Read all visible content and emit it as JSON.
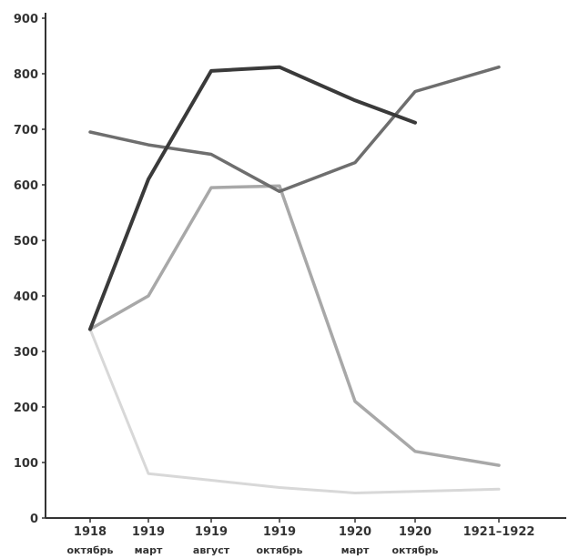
{
  "chart_data": {
    "type": "line",
    "title": "",
    "xlabel": "",
    "ylabel": "",
    "ylim": [
      0,
      900
    ],
    "yticks": [
      0,
      100,
      200,
      300,
      400,
      500,
      600,
      700,
      800,
      900
    ],
    "categories": [
      {
        "year": "1918",
        "sub": "октябрь"
      },
      {
        "year": "1919",
        "sub": "март"
      },
      {
        "year": "1919",
        "sub": "август"
      },
      {
        "year": "1919",
        "sub": "октябрь"
      },
      {
        "year": "1920",
        "sub": "март"
      },
      {
        "year": "1920",
        "sub": "октябрь"
      },
      {
        "year": "1921–1922",
        "sub": ""
      }
    ],
    "grid": false,
    "legend": "none",
    "series": [
      {
        "color": "#3a3a3a",
        "width": 4,
        "values": [
          340,
          610,
          805,
          812,
          752,
          712,
          null
        ]
      },
      {
        "color": "#6e6e6e",
        "width": 3.5,
        "values": [
          695,
          672,
          655,
          588,
          640,
          768,
          812
        ]
      },
      {
        "color": "#a8a8a8",
        "width": 3.5,
        "values": [
          340,
          400,
          595,
          598,
          210,
          120,
          95
        ]
      },
      {
        "color": "#d8d8d8",
        "width": 3,
        "values": [
          340,
          80,
          68,
          55,
          45,
          48,
          52
        ]
      }
    ]
  }
}
